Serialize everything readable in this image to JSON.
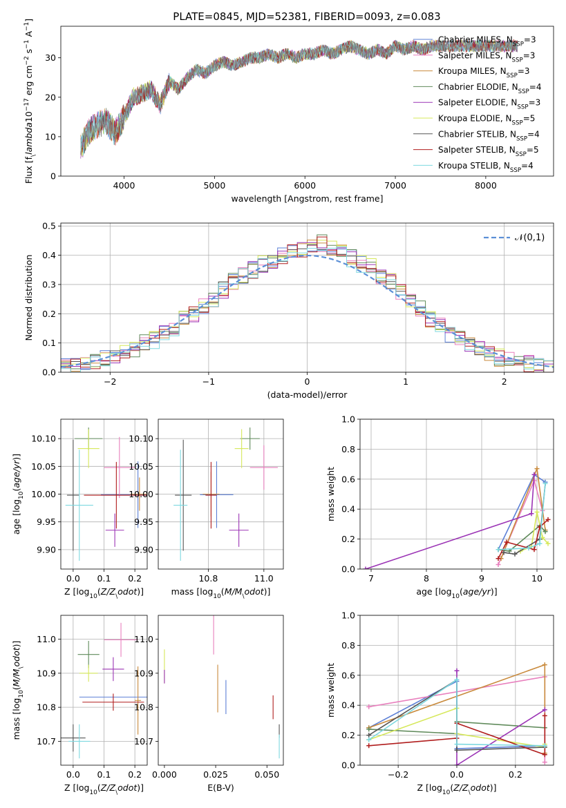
{
  "figure": {
    "title": "PLATE=0845, MJD=52381, FIBERID=0093, z=0.083"
  },
  "models": [
    {
      "name": "Chabrier MILES, N$_{SSP}$=3",
      "color": "#5b7fd6"
    },
    {
      "name": "Salpeter MILES, N$_{SSP}$=3",
      "color": "#e87fbd"
    },
    {
      "name": "Kroupa MILES, N$_{SSP}$=3",
      "color": "#c98a3c"
    },
    {
      "name": "Chabrier ELODIE, N$_{SSP}$=4",
      "color": "#5f8a5a"
    },
    {
      "name": "Salpeter ELODIE, N$_{SSP}$=3",
      "color": "#9b33b5"
    },
    {
      "name": "Kroupa ELODIE, N$_{SSP}$=5",
      "color": "#d6e85a"
    },
    {
      "name": "Chabrier STELIB, N$_{SSP}$=4",
      "color": "#555555"
    },
    {
      "name": "Salpeter STELIB, N$_{SSP}$=5",
      "color": "#b01c1c"
    },
    {
      "name": "Kroupa STELIB, N$_{SSP}$=4",
      "color": "#7dd8e0"
    }
  ],
  "chart_data": [
    {
      "id": "spectrum",
      "type": "line",
      "xlabel": "wavelength [Angstrom, rest frame]",
      "ylabel": "Flux [f$_\\lambda$10$^{-17}$ erg cm$^{-2}$ s$^{-1}$ A$^{-1}$]",
      "xlim": [
        3300,
        8750
      ],
      "ylim": [
        0,
        38
      ],
      "xticks": [
        4000,
        5000,
        6000,
        7000,
        8000
      ],
      "yticks": [
        0,
        10,
        20,
        30
      ],
      "grid": false,
      "legend": "right",
      "x": [
        3520,
        3600,
        3700,
        3800,
        3900,
        4000,
        4100,
        4200,
        4300,
        4400,
        4500,
        4600,
        4700,
        4800,
        4900,
        5000,
        5100,
        5200,
        5300,
        5400,
        5500,
        5600,
        5700,
        5800,
        5900,
        6000,
        6100,
        6200,
        6300,
        6400,
        6500,
        6600,
        6700,
        6800,
        6900,
        7000,
        7100,
        7200,
        7300,
        7400
      ],
      "y": [
        7,
        11,
        13,
        14,
        11,
        15,
        20,
        21,
        22,
        18,
        24,
        22,
        25,
        27,
        26,
        28,
        29,
        28,
        29,
        30,
        30,
        31,
        30,
        31,
        30,
        31,
        31,
        32,
        31,
        32,
        33,
        32,
        31,
        32,
        31,
        33,
        32,
        33,
        32,
        33
      ]
    },
    {
      "id": "residuals",
      "type": "step",
      "xlabel": "(data-model)/error",
      "ylabel": "Normed distribution",
      "xlim": [
        -2.5,
        2.5
      ],
      "ylim": [
        0,
        0.51
      ],
      "xticks": [
        -2,
        -1,
        0,
        1,
        2
      ],
      "yticks": [
        0.0,
        0.1,
        0.2,
        0.3,
        0.4,
        0.5
      ],
      "grid": true,
      "legend": "top-right",
      "reference_curve": "$\\mathcal{N}(0,1)$",
      "bin_edges": [
        -2.5,
        -2.4,
        -2.3,
        -2.2,
        -2.1,
        -2.0,
        -1.9,
        -1.8,
        -1.7,
        -1.6,
        -1.5,
        -1.4,
        -1.3,
        -1.2,
        -1.1,
        -1.0,
        -0.9,
        -0.8,
        -0.7,
        -0.6,
        -0.5,
        -0.4,
        -0.3,
        -0.2,
        -0.1,
        0.0,
        0.1,
        0.2,
        0.3,
        0.4,
        0.5,
        0.6,
        0.7,
        0.8,
        0.9,
        1.0,
        1.1,
        1.2,
        1.3,
        1.4,
        1.5,
        1.6,
        1.7,
        1.8,
        1.9,
        2.0,
        2.1,
        2.2,
        2.3,
        2.4,
        2.5
      ],
      "mean_histogram": [
        0.02,
        0.02,
        0.03,
        0.04,
        0.05,
        0.06,
        0.07,
        0.08,
        0.1,
        0.11,
        0.14,
        0.15,
        0.18,
        0.2,
        0.23,
        0.25,
        0.28,
        0.31,
        0.33,
        0.35,
        0.37,
        0.38,
        0.4,
        0.41,
        0.42,
        0.43,
        0.44,
        0.42,
        0.41,
        0.39,
        0.37,
        0.36,
        0.33,
        0.31,
        0.27,
        0.25,
        0.22,
        0.18,
        0.16,
        0.13,
        0.11,
        0.09,
        0.08,
        0.06,
        0.05,
        0.04,
        0.03,
        0.03,
        0.02,
        0.02
      ]
    },
    {
      "id": "age-vs-Z",
      "type": "errorbar",
      "xlabel": "Z [log$_{10}$($Z/Z_\\odot$)]",
      "ylabel": "age  [log$_{10}$($age/yr$)]",
      "xlim": [
        -0.04,
        0.24
      ],
      "ylim": [
        9.865,
        10.135
      ],
      "xticks": [
        0.0,
        0.1,
        0.2
      ],
      "yticks": [
        9.9,
        9.95,
        10.0,
        10.05,
        10.1
      ],
      "grid": true,
      "points": [
        {
          "model": 0,
          "x": 0.21,
          "y": 9.999,
          "xerr": 0.12,
          "yerr": 0.06
        },
        {
          "model": 1,
          "x": 0.15,
          "y": 10.048,
          "xerr": 0.05,
          "yerr": 0.055
        },
        {
          "model": 2,
          "x": 0.215,
          "y": 10.0,
          "xerr": 0.03,
          "yerr": 0.03
        },
        {
          "model": 3,
          "x": 0.05,
          "y": 10.1,
          "xerr": 0.045,
          "yerr": 0.02
        },
        {
          "model": 4,
          "x": 0.135,
          "y": 9.935,
          "xerr": 0.03,
          "yerr": 0.03
        },
        {
          "model": 5,
          "x": 0.05,
          "y": 10.082,
          "xerr": 0.035,
          "yerr": 0.035
        },
        {
          "model": 6,
          "x": 0.0,
          "y": 9.998,
          "xerr": 0.02,
          "yerr": 0.1
        },
        {
          "model": 7,
          "x": 0.14,
          "y": 9.998,
          "xerr": 0.105,
          "yerr": 0.06
        },
        {
          "model": 8,
          "x": 0.02,
          "y": 9.98,
          "xerr": 0.045,
          "yerr": 0.1
        }
      ]
    },
    {
      "id": "age-vs-mass",
      "type": "errorbar",
      "xlabel": "mass [log$_{10}$($M/M_\\odot$)]",
      "ylabel": "",
      "xlim": [
        10.62,
        11.07
      ],
      "ylim": [
        9.865,
        10.135
      ],
      "xticks": [
        10.8,
        11.0
      ],
      "yticks": [
        9.9,
        9.95,
        10.0,
        10.05,
        10.1
      ],
      "grid": true,
      "points": [
        {
          "model": 0,
          "x": 10.83,
          "y": 9.999,
          "xerr": 0.06,
          "yerr": 0.06
        },
        {
          "model": 1,
          "x": 11.0,
          "y": 10.048,
          "xerr": 0.05,
          "yerr": 0.04
        },
        {
          "model": 2,
          "x": 10.81,
          "y": 10.0,
          "xerr": 0.03,
          "yerr": 0.04
        },
        {
          "model": 3,
          "x": 10.95,
          "y": 10.1,
          "xerr": 0.035,
          "yerr": 0.02
        },
        {
          "model": 4,
          "x": 10.91,
          "y": 9.935,
          "xerr": 0.035,
          "yerr": 0.03
        },
        {
          "model": 5,
          "x": 10.92,
          "y": 10.082,
          "xerr": 0.025,
          "yerr": 0.035
        },
        {
          "model": 6,
          "x": 10.71,
          "y": 9.998,
          "xerr": 0.03,
          "yerr": 0.1
        },
        {
          "model": 7,
          "x": 10.81,
          "y": 9.998,
          "xerr": 0.02,
          "yerr": 0.06
        },
        {
          "model": 8,
          "x": 10.7,
          "y": 9.98,
          "xerr": 0.025,
          "yerr": 0.1
        }
      ]
    },
    {
      "id": "mass-weight-vs-age",
      "type": "line",
      "xlabel": "age  [log$_{10}$($age/yr$)]",
      "ylabel": "mass weight",
      "xlim": [
        6.8,
        10.3
      ],
      "ylim": [
        0,
        1
      ],
      "xticks": [
        7,
        8,
        9,
        10
      ],
      "yticks": [
        0.0,
        0.2,
        0.4,
        0.6,
        0.8,
        1.0
      ],
      "grid": true,
      "series": [
        {
          "model": 0,
          "x": [
            9.3,
            9.95,
            10.15
          ],
          "y": [
            0.13,
            0.63,
            0.58
          ]
        },
        {
          "model": 1,
          "x": [
            9.3,
            9.95,
            10.1
          ],
          "y": [
            0.03,
            0.59,
            0.39
          ]
        },
        {
          "model": 2,
          "x": [
            9.35,
            10.0,
            10.15
          ],
          "y": [
            0.07,
            0.67,
            0.26
          ]
        },
        {
          "model": 3,
          "x": [
            9.3,
            9.5,
            10.05,
            10.15
          ],
          "y": [
            0.13,
            0.12,
            0.29,
            0.25
          ]
        },
        {
          "model": 4,
          "x": [
            6.9,
            9.9,
            9.95
          ],
          "y": [
            0.0,
            0.37,
            0.63
          ]
        },
        {
          "model": 5,
          "x": [
            9.7,
            9.9,
            10.0,
            10.1,
            10.2
          ],
          "y": [
            0.12,
            0.15,
            0.38,
            0.21,
            0.17
          ]
        },
        {
          "model": 6,
          "x": [
            9.4,
            9.6,
            10.05,
            10.15
          ],
          "y": [
            0.11,
            0.1,
            0.2,
            0.57
          ]
        },
        {
          "model": 7,
          "x": [
            9.3,
            9.45,
            9.95,
            10.05,
            10.2
          ],
          "y": [
            0.07,
            0.18,
            0.13,
            0.28,
            0.33
          ]
        },
        {
          "model": 8,
          "x": [
            9.3,
            9.85,
            10.05,
            10.15
          ],
          "y": [
            0.13,
            0.14,
            0.17,
            0.57
          ]
        }
      ]
    },
    {
      "id": "mass-vs-Z",
      "type": "errorbar",
      "xlabel": "Z [log$_{10}$($Z/Z_\\odot$)]",
      "ylabel": "mass [log$_{10}$($M/M_\\odot$)]",
      "xlim": [
        -0.04,
        0.24
      ],
      "ylim": [
        10.63,
        11.07
      ],
      "xticks": [
        0.0,
        0.1,
        0.2
      ],
      "yticks": [
        10.7,
        10.8,
        10.9,
        11.0
      ],
      "grid": true,
      "points": [
        {
          "model": 0,
          "x": 0.13,
          "y": 10.83,
          "xerr": 0.11,
          "yerr": 0.0
        },
        {
          "model": 1,
          "x": 0.155,
          "y": 10.998,
          "xerr": 0.055,
          "yerr": 0.05
        },
        {
          "model": 2,
          "x": 0.21,
          "y": 10.82,
          "xerr": 0.01,
          "yerr": 0.1
        },
        {
          "model": 3,
          "x": 0.05,
          "y": 10.955,
          "xerr": 0.035,
          "yerr": 0.04
        },
        {
          "model": 4,
          "x": 0.13,
          "y": 10.912,
          "xerr": 0.035,
          "yerr": 0.035
        },
        {
          "model": 5,
          "x": 0.05,
          "y": 10.9,
          "xerr": 0.03,
          "yerr": 0.025
        },
        {
          "model": 6,
          "x": 0.0,
          "y": 10.71,
          "xerr": 0.04,
          "yerr": 0.04
        },
        {
          "model": 7,
          "x": 0.13,
          "y": 10.815,
          "xerr": 0.1,
          "yerr": 0.025
        },
        {
          "model": 8,
          "x": 0.02,
          "y": 10.7,
          "xerr": 0.035,
          "yerr": 0.05
        }
      ]
    },
    {
      "id": "mass-vs-EBV",
      "type": "errorbar",
      "xlabel": "E(B-V)",
      "ylabel": "",
      "xlim": [
        -0.003,
        0.058
      ],
      "ylim": [
        10.63,
        11.07
      ],
      "xticks": [
        0.0,
        0.025,
        0.05
      ],
      "yticks": [
        10.7,
        10.8,
        10.9,
        11.0
      ],
      "grid": false,
      "points": [
        {
          "model": 0,
          "x": 0.03,
          "y": 10.83,
          "xerr": 0.0,
          "yerr": 0.05
        },
        {
          "model": 1,
          "x": 0.024,
          "y": 11.02,
          "xerr": 0.0,
          "yerr": 0.065
        },
        {
          "model": 2,
          "x": 0.026,
          "y": 10.855,
          "xerr": 0.0,
          "yerr": 0.07
        },
        {
          "model": 5,
          "x": 0.0,
          "y": 10.92,
          "xerr": 0.0,
          "yerr": 0.05
        },
        {
          "model": 4,
          "x": 0.0,
          "y": 10.89,
          "xerr": 0.0,
          "yerr": 0.02
        },
        {
          "model": 7,
          "x": 0.053,
          "y": 10.8,
          "xerr": 0.0,
          "yerr": 0.035
        },
        {
          "model": 6,
          "x": 0.056,
          "y": 10.73,
          "xerr": 0.0,
          "yerr": 0.02
        },
        {
          "model": 8,
          "x": 0.056,
          "y": 10.685,
          "xerr": 0.0,
          "yerr": 0.035
        }
      ]
    },
    {
      "id": "mass-weight-vs-Z",
      "type": "line",
      "xlabel": "Z [log$_{10}$($Z/Z_\\odot$)]",
      "ylabel": "mass weight",
      "xlim": [
        -0.33,
        0.33
      ],
      "ylim": [
        0,
        1
      ],
      "xticks": [
        -0.2,
        0.0,
        0.2
      ],
      "yticks": [
        0.0,
        0.2,
        0.4,
        0.6,
        0.8,
        1.0
      ],
      "grid": true,
      "series": [
        {
          "model": 0,
          "x": [
            -0.3,
            0.0,
            0.0,
            0.3
          ],
          "y": [
            0.25,
            0.56,
            0.11,
            0.13
          ]
        },
        {
          "model": 1,
          "x": [
            -0.3,
            0.3,
            0.3
          ],
          "y": [
            0.39,
            0.59,
            0.02
          ]
        },
        {
          "model": 2,
          "x": [
            -0.3,
            0.3,
            0.3
          ],
          "y": [
            0.25,
            0.67,
            0.08
          ]
        },
        {
          "model": 3,
          "x": [
            -0.3,
            0.0,
            0.0,
            0.3
          ],
          "y": [
            0.24,
            0.21,
            0.29,
            0.25
          ]
        },
        {
          "model": 4,
          "x": [
            0.0,
            0.0,
            0.3
          ],
          "y": [
            0.63,
            0.0,
            0.37
          ]
        },
        {
          "model": 5,
          "x": [
            -0.3,
            0.0,
            0.0,
            0.3,
            0.3
          ],
          "y": [
            0.17,
            0.38,
            0.21,
            0.12,
            0.14
          ]
        },
        {
          "model": 6,
          "x": [
            -0.3,
            0.0,
            0.0,
            0.3
          ],
          "y": [
            0.2,
            0.57,
            0.1,
            0.12
          ]
        },
        {
          "model": 7,
          "x": [
            -0.3,
            0.0,
            0.0,
            0.3,
            0.3
          ],
          "y": [
            0.13,
            0.18,
            0.28,
            0.07,
            0.33
          ]
        },
        {
          "model": 8,
          "x": [
            -0.3,
            0.0,
            0.0,
            0.3
          ],
          "y": [
            0.17,
            0.57,
            0.14,
            0.13
          ]
        }
      ]
    }
  ]
}
